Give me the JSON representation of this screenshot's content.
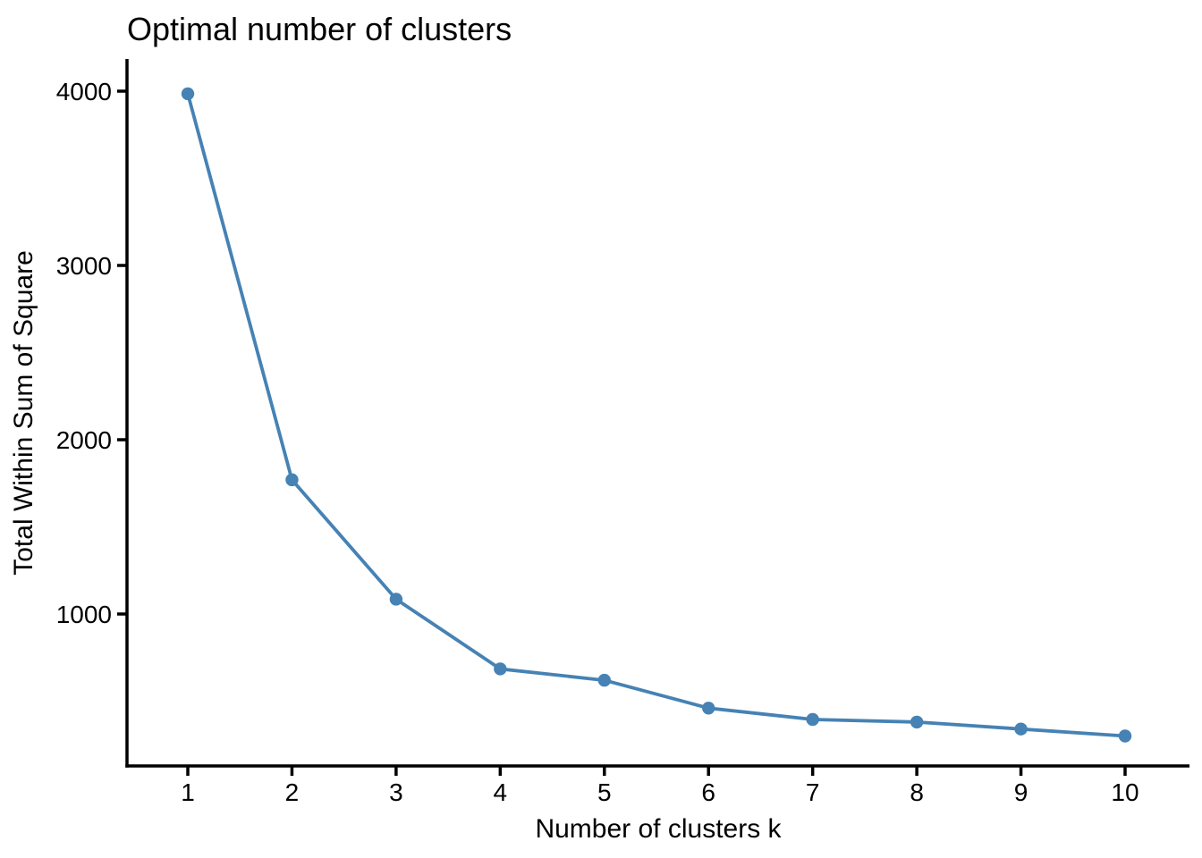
{
  "chart_data": {
    "type": "line",
    "title": "Optimal number of clusters",
    "xlabel": "Number of clusters k",
    "ylabel": "Total Within Sum of Square",
    "x": [
      1,
      2,
      3,
      4,
      5,
      6,
      7,
      8,
      9,
      10
    ],
    "y": [
      3985,
      1770,
      1085,
      685,
      620,
      460,
      395,
      380,
      340,
      300
    ],
    "xtick_labels": [
      "1",
      "2",
      "3",
      "4",
      "5",
      "6",
      "7",
      "8",
      "9",
      "10"
    ],
    "ytick_values": [
      1000,
      2000,
      3000,
      4000
    ],
    "ytick_labels": [
      "1000",
      "2000",
      "3000",
      "4000"
    ],
    "xlim": [
      0.55,
      10.6
    ],
    "ylim": [
      110,
      4175
    ],
    "grid": false,
    "legend": "none",
    "line_color": "#4682B4",
    "marker_color": "#4682B4",
    "marker_shape": "filled-circle",
    "axis_color": "#000000",
    "text_color": "#000000",
    "background_color": "#ffffff"
  }
}
